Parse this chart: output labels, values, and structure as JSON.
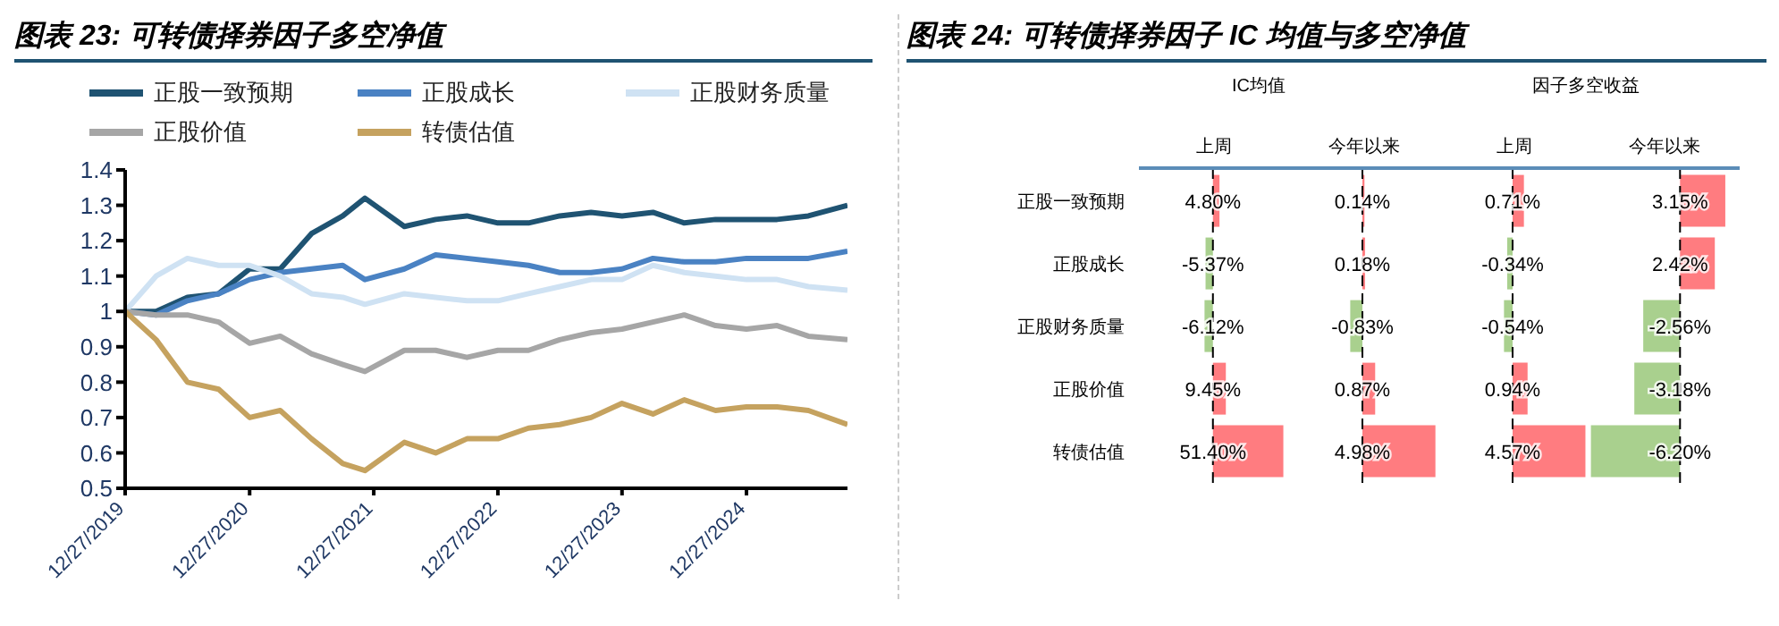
{
  "chart_data": [
    {
      "type": "line",
      "title": "图表 23: 可转债择券因子多空净值",
      "x": [
        "2019-12-27",
        "2020-03-27",
        "2020-06-27",
        "2020-09-27",
        "2020-12-27",
        "2021-03-27",
        "2021-06-27",
        "2021-09-27",
        "2021-12-01",
        "2022-03-27",
        "2022-06-27",
        "2022-09-27",
        "2022-12-27",
        "2023-03-27",
        "2023-06-27",
        "2023-09-27",
        "2023-12-27",
        "2024-03-27",
        "2024-06-27",
        "2024-09-27",
        "2024-12-27",
        "2025-03-27",
        "2025-06-27",
        "2025-10-20"
      ],
      "series": [
        {
          "name": "正股一致预期",
          "color": "#1f5372",
          "values": [
            1.0,
            1.0,
            1.04,
            1.05,
            1.12,
            1.12,
            1.22,
            1.27,
            1.32,
            1.24,
            1.26,
            1.27,
            1.25,
            1.25,
            1.27,
            1.28,
            1.27,
            1.28,
            1.25,
            1.26,
            1.26,
            1.26,
            1.27,
            1.3
          ]
        },
        {
          "name": "正股成长",
          "color": "#4a82c3",
          "values": [
            1.0,
            0.99,
            1.03,
            1.05,
            1.09,
            1.11,
            1.12,
            1.13,
            1.09,
            1.12,
            1.16,
            1.15,
            1.14,
            1.13,
            1.11,
            1.11,
            1.12,
            1.15,
            1.14,
            1.14,
            1.15,
            1.15,
            1.15,
            1.17
          ]
        },
        {
          "name": "正股财务质量",
          "color": "#cfe2f3",
          "values": [
            1.0,
            1.1,
            1.15,
            1.13,
            1.13,
            1.1,
            1.05,
            1.04,
            1.02,
            1.05,
            1.04,
            1.03,
            1.03,
            1.05,
            1.07,
            1.09,
            1.09,
            1.13,
            1.11,
            1.1,
            1.09,
            1.09,
            1.07,
            1.06
          ]
        },
        {
          "name": "正股价值",
          "color": "#a6a6a6",
          "values": [
            1.0,
            0.99,
            0.99,
            0.97,
            0.91,
            0.93,
            0.88,
            0.85,
            0.83,
            0.89,
            0.89,
            0.87,
            0.89,
            0.89,
            0.92,
            0.94,
            0.95,
            0.97,
            0.99,
            0.96,
            0.95,
            0.96,
            0.93,
            0.92
          ]
        },
        {
          "name": "转债估值",
          "color": "#c5a25f",
          "values": [
            1.0,
            0.92,
            0.8,
            0.78,
            0.7,
            0.72,
            0.64,
            0.57,
            0.55,
            0.63,
            0.6,
            0.64,
            0.64,
            0.67,
            0.68,
            0.7,
            0.74,
            0.71,
            0.75,
            0.72,
            0.73,
            0.73,
            0.72,
            0.68
          ]
        }
      ],
      "xlim": [
        "2019-12-27",
        "2025-10-20"
      ],
      "xticks": [
        {
          "value": "2019-12-27",
          "label": "12/27/2019"
        },
        {
          "value": "2020-12-27",
          "label": "12/27/2020"
        },
        {
          "value": "2021-12-27",
          "label": "12/27/2021"
        },
        {
          "value": "2022-12-27",
          "label": "12/27/2022"
        },
        {
          "value": "2023-12-27",
          "label": "12/27/2023"
        },
        {
          "value": "2024-12-27",
          "label": "12/27/2024"
        }
      ],
      "ylim": [
        0.5,
        1.4
      ],
      "yticks": [
        0.5,
        0.6,
        0.7,
        0.8,
        0.9,
        1,
        1.1,
        1.2,
        1.3,
        1.4
      ],
      "grid": false,
      "legend": "top",
      "marker": "none",
      "line_style": "solid"
    },
    {
      "type": "bar",
      "orientation": "horizontal",
      "title": "图表 24: 可转债择券因子 IC 均值与多空净值",
      "annotations": [
        "IC均值"
      ],
      "subtitle": "上周",
      "categories": [
        "正股一致预期",
        "正股成长",
        "正股财务质量",
        "正股价值",
        "转债估值"
      ],
      "values": [
        4.8,
        -5.37,
        -6.12,
        9.45,
        51.4
      ],
      "value_labels": [
        "4.80%",
        "-5.37%",
        "-6.12%",
        "9.45%",
        "51.40%"
      ],
      "colors": [
        "#ff7c80",
        "#a9d08e",
        "#a9d08e",
        "#ff7c80",
        "#ff7c80"
      ],
      "xlim": [
        -54,
        53
      ],
      "ref_lines": [
        {
          "axis": "x",
          "value": 0,
          "line_style": "dashed",
          "color": "#000000"
        }
      ],
      "tick_labels": "y"
    },
    {
      "type": "bar",
      "orientation": "horizontal",
      "subtitle": "今年以来",
      "values": [
        0.14,
        0.18,
        -0.83,
        0.87,
        4.98
      ],
      "value_labels": [
        "0.14%",
        "0.18%",
        "-0.83%",
        "0.87%",
        "4.98%"
      ],
      "colors": [
        "#ff7c80",
        "#ff7c80",
        "#a9d08e",
        "#ff7c80",
        "#ff7c80"
      ],
      "xlim": [
        -5,
        5
      ],
      "ref_lines": [
        {
          "axis": "x",
          "value": 0,
          "line_style": "dashed",
          "color": "#000000"
        }
      ],
      "tick_labels": false
    },
    {
      "type": "bar",
      "orientation": "horizontal",
      "annotations": [
        "因子多空收益"
      ],
      "subtitle": "上周",
      "values": [
        0.71,
        -0.34,
        -0.54,
        0.94,
        4.57
      ],
      "value_labels": [
        "0.71%",
        "-0.34%",
        "-0.54%",
        "0.94%",
        "4.57%"
      ],
      "colors": [
        "#ff7c80",
        "#a9d08e",
        "#a9d08e",
        "#ff7c80",
        "#ff7c80"
      ],
      "xlim": [
        -4.6,
        4.6
      ],
      "ref_lines": [
        {
          "axis": "x",
          "value": 0,
          "line_style": "dashed",
          "color": "#000000"
        }
      ],
      "tick_labels": false
    },
    {
      "type": "bar",
      "orientation": "horizontal",
      "subtitle": "今年以来",
      "values": [
        3.15,
        2.42,
        -2.56,
        -3.18,
        -6.2
      ],
      "value_labels": [
        "3.15%",
        "2.42%",
        "-2.56%",
        "-3.18%",
        "-6.20%"
      ],
      "colors": [
        "#ff7c80",
        "#ff7c80",
        "#a9d08e",
        "#a9d08e",
        "#a9d08e"
      ],
      "xlim": [
        -6.3,
        3.9
      ],
      "ref_lines": [
        {
          "axis": "x",
          "value": 0,
          "line_style": "dashed",
          "color": "#000000"
        }
      ],
      "tick_labels": false
    }
  ]
}
